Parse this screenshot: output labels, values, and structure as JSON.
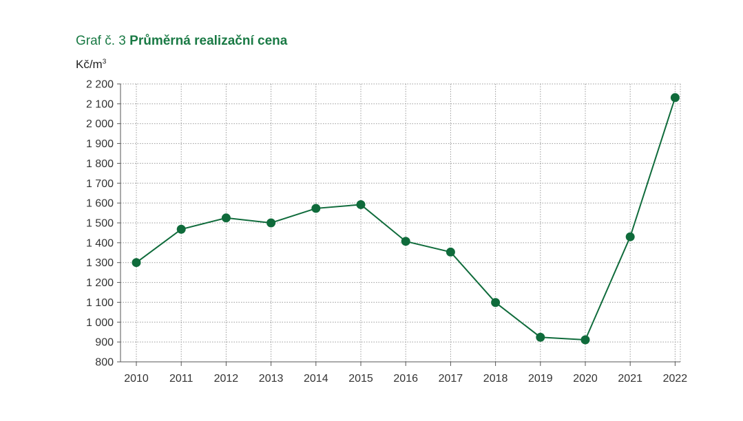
{
  "header": {
    "title_prefix": "Graf č. 3",
    "title": "Průměrná realizační cena",
    "unit": "Kč/m",
    "unit_sup": "3"
  },
  "chart_data": {
    "type": "line",
    "title": "Průměrná realizační cena",
    "ylabel": "Kč/m³",
    "xlabel": "",
    "x": [
      "2010",
      "2011",
      "2012",
      "2013",
      "2014",
      "2015",
      "2016",
      "2017",
      "2018",
      "2019",
      "2020",
      "2021",
      "2022"
    ],
    "series": [
      {
        "values": [
          1300,
          1468,
          1525,
          1500,
          1573,
          1592,
          1407,
          1353,
          1099,
          924,
          911,
          1430,
          2131
        ]
      }
    ],
    "ylim": [
      800,
      2200
    ],
    "yticks": [
      800,
      900,
      1000,
      1100,
      1200,
      1300,
      1400,
      1500,
      1600,
      1700,
      1800,
      1900,
      2000,
      2100,
      2200
    ],
    "ytick_labels": [
      "800",
      "900",
      "1 000",
      "1 100",
      "1 200",
      "1 300",
      "1 400",
      "1 500",
      "1 600",
      "1 700",
      "1 800",
      "1 900",
      "2 000",
      "2 100",
      "2 200"
    ],
    "grid": true,
    "line_color": "#0f6b3b",
    "grid_color": "#999999"
  }
}
